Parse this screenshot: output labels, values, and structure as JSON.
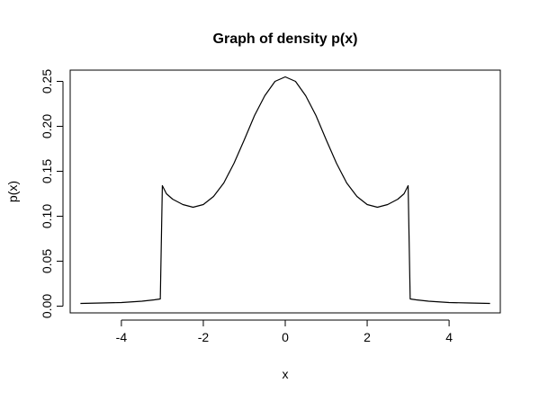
{
  "chart_data": {
    "type": "line",
    "title": "Graph of density p(x)",
    "xlabel": "x",
    "ylabel": "p(x)",
    "xlim": [
      -5.25,
      5.25
    ],
    "ylim": [
      -0.0075,
      0.2625
    ],
    "x_ticks": [
      -4,
      -2,
      0,
      2,
      4
    ],
    "x_tick_labels": [
      "-4",
      "-2",
      "0",
      "2",
      "4"
    ],
    "y_ticks": [
      0.0,
      0.05,
      0.1,
      0.15,
      0.2,
      0.25
    ],
    "y_tick_labels": [
      "0.00",
      "0.05",
      "0.10",
      "0.15",
      "0.20",
      "0.25"
    ],
    "grid": false,
    "legend": "none",
    "series": [
      {
        "color": "#000000",
        "x": [
          -5.0,
          -4.5,
          -4.0,
          -3.5,
          -3.2,
          -3.05,
          -3.0,
          -2.9,
          -2.75,
          -2.5,
          -2.25,
          -2.0,
          -1.75,
          -1.5,
          -1.25,
          -1.0,
          -0.75,
          -0.5,
          -0.25,
          0.0,
          0.25,
          0.5,
          0.75,
          1.0,
          1.25,
          1.5,
          1.75,
          2.0,
          2.25,
          2.5,
          2.75,
          2.9,
          3.0,
          3.05,
          3.2,
          3.5,
          4.0,
          4.5,
          5.0
        ],
        "y": [
          0.003,
          0.0035,
          0.004,
          0.0055,
          0.007,
          0.008,
          0.134,
          0.125,
          0.119,
          0.113,
          0.11,
          0.113,
          0.122,
          0.137,
          0.159,
          0.185,
          0.212,
          0.234,
          0.25,
          0.255,
          0.25,
          0.234,
          0.212,
          0.185,
          0.159,
          0.137,
          0.122,
          0.113,
          0.11,
          0.113,
          0.119,
          0.125,
          0.134,
          0.008,
          0.007,
          0.0055,
          0.004,
          0.0035,
          0.003
        ]
      }
    ]
  }
}
